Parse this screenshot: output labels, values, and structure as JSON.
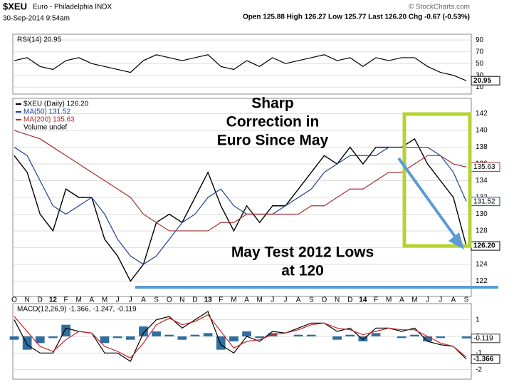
{
  "header": {
    "symbol": "$XEU",
    "name": "Euro - Philadelphia INDX",
    "date": "30-Sep-2014 9:54am",
    "copyright": "© StockCharts.com",
    "quote": "Open 125.88  High 126.27  Low 125.77  Last 126.20  Chg -0.67 (-0.53%)"
  },
  "annotations": [
    "Sharp",
    "Correction in",
    "Euro Since May",
    "May Test 2012 Lows",
    "at 120"
  ],
  "chart_data": [
    {
      "type": "line",
      "label": "RSI(14) 20.95",
      "ylim": [
        3,
        95
      ],
      "yticks": [
        10,
        30,
        50,
        70,
        90
      ],
      "series": [
        {
          "color": "#000000",
          "end_label": "20.95",
          "values": [
            55,
            60,
            45,
            40,
            55,
            60,
            50,
            45,
            40,
            35,
            55,
            65,
            60,
            55,
            60,
            65,
            45,
            40,
            55,
            45,
            60,
            50,
            55,
            60,
            65,
            55,
            60,
            45,
            60,
            55,
            60,
            60,
            45,
            35,
            30,
            20.95
          ]
        }
      ]
    },
    {
      "type": "line",
      "ylim": [
        120.5,
        143.5
      ],
      "yticks": [
        122,
        124,
        126,
        128,
        130,
        132,
        134,
        136,
        138,
        140,
        142
      ],
      "categories": [
        "O",
        "N",
        "D",
        "12",
        "F",
        "M",
        "A",
        "M",
        "J",
        "J",
        "A",
        "S",
        "O",
        "N",
        "D",
        "13",
        "F",
        "M",
        "A",
        "M",
        "J",
        "J",
        "A",
        "S",
        "O",
        "N",
        "D",
        "14",
        "F",
        "M",
        "A",
        "M",
        "J",
        "J",
        "A",
        "S"
      ],
      "legend_extra": "Volume undef",
      "series": [
        {
          "name": "$XEU (Daily) 126.20",
          "color": "#000000",
          "end_label": "126.20",
          "values": [
            137,
            135,
            130,
            128,
            133,
            132,
            132,
            127,
            125,
            122,
            124,
            129,
            130,
            129,
            132,
            135,
            131,
            128,
            131,
            129,
            131,
            131,
            133,
            135,
            137,
            136,
            138,
            136,
            138,
            138,
            138,
            139,
            136,
            134,
            132,
            126.2
          ]
        },
        {
          "name": "MA(50) 131.52",
          "color": "#1f3f8f",
          "end_label": "131.52",
          "values": [
            138,
            137,
            134,
            131,
            130,
            131,
            132,
            130,
            127,
            125,
            124,
            125,
            127,
            129,
            130,
            132,
            133,
            131,
            130,
            130,
            130,
            131,
            132,
            133,
            135,
            136,
            137,
            137,
            137,
            138,
            138,
            138,
            138,
            137,
            135,
            131.52
          ]
        },
        {
          "name": "MA(200) 135.63",
          "color": "#a33030",
          "end_label": "135.63",
          "values": [
            140,
            139.5,
            139,
            138,
            137,
            136,
            135,
            134,
            133,
            132,
            130,
            129,
            128,
            128,
            128,
            128,
            129,
            129,
            130,
            130,
            130,
            130,
            130,
            131,
            131,
            132,
            133,
            133,
            134,
            135,
            135,
            136,
            137,
            137,
            136,
            135.63
          ]
        }
      ]
    },
    {
      "type": "line",
      "label": "MACD(12,26,9) -1.366, -1.247, -0.119",
      "ylim": [
        -2.4,
        1.8
      ],
      "yticks": [
        -2,
        -1,
        0,
        1
      ],
      "histogram": {
        "color": "#2f6f9f",
        "end_label": "-0.119",
        "values": [
          -0.2,
          -0.8,
          -0.4,
          -0.1,
          0.7,
          0,
          0,
          -0.4,
          -0.1,
          -0.2,
          0.6,
          0.3,
          0.1,
          -0.2,
          0.1,
          0.2,
          -0.8,
          -0.3,
          0.3,
          -0.1,
          0.2,
          0,
          0.1,
          0.1,
          0,
          -0.2,
          0.1,
          -0.3,
          0.2,
          0,
          -0.1,
          0.1,
          -0.3,
          -0.1,
          0,
          -0.119
        ]
      },
      "series": [
        {
          "color": "#000000",
          "end_label": "-1.366",
          "values": [
            1,
            -0.5,
            -1,
            -1,
            0.5,
            0.3,
            0.2,
            -1,
            -1,
            -1.5,
            0.2,
            1,
            1.2,
            0.5,
            1,
            1.5,
            -0.5,
            -1,
            0,
            -0.3,
            0.3,
            0.2,
            0.5,
            0.8,
            0.8,
            0.3,
            0.5,
            -0.2,
            0.5,
            0.5,
            0.3,
            0.5,
            -0.3,
            -0.5,
            -0.6,
            -1.366
          ]
        },
        {
          "color": "#cc2222",
          "values": [
            1.2,
            0.3,
            -0.6,
            -0.9,
            -0.2,
            0.3,
            0.2,
            -0.6,
            -0.9,
            -1.3,
            -0.4,
            0.7,
            1.1,
            0.7,
            0.9,
            1.3,
            0.3,
            -0.7,
            -0.3,
            -0.2,
            0.1,
            0.2,
            0.4,
            0.7,
            0.8,
            0.5,
            0.4,
            0.1,
            0.3,
            0.5,
            0.4,
            0.4,
            0,
            -0.4,
            -0.6,
            -1.247
          ]
        }
      ]
    }
  ]
}
